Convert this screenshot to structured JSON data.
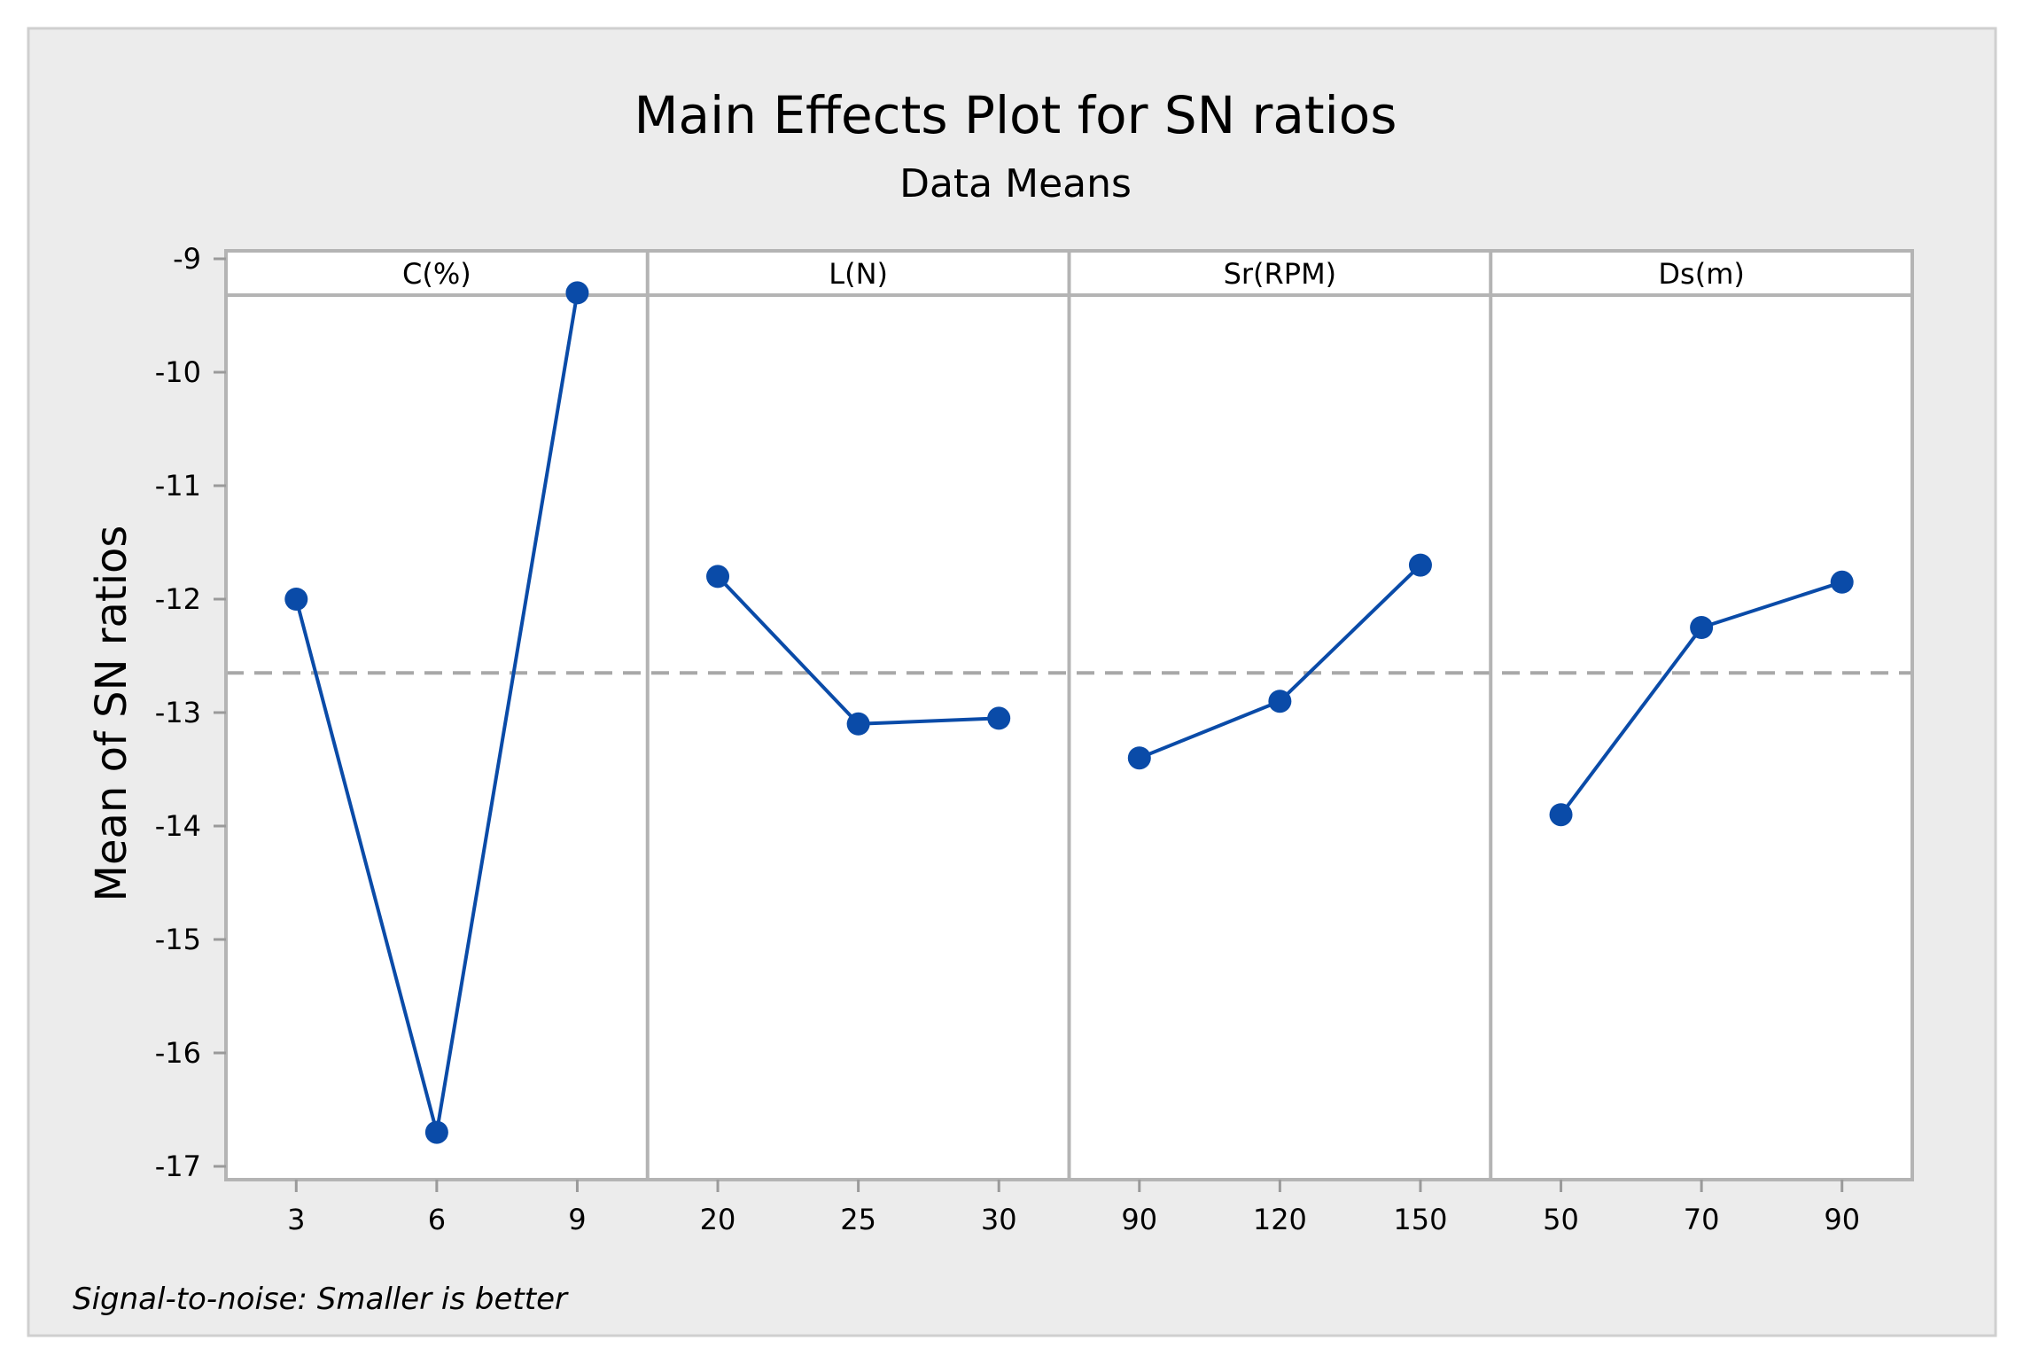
{
  "chart_data": {
    "type": "line",
    "title": "Main Effects Plot for SN ratios",
    "subtitle": "Data Means",
    "ylabel": "Mean of SN ratios",
    "ylim": [
      -17,
      -9
    ],
    "yticks": [
      -9,
      -10,
      -11,
      -12,
      -13,
      -14,
      -15,
      -16,
      -17
    ],
    "reference_line": -12.65,
    "footnote": "Signal-to-noise: Smaller is better",
    "series_color": "#0a4ba8",
    "panels": [
      {
        "label": "C(%)",
        "categories": [
          "3",
          "6",
          "9"
        ],
        "values": [
          -12.0,
          -16.7,
          -9.3
        ]
      },
      {
        "label": "L(N)",
        "categories": [
          "20",
          "25",
          "30"
        ],
        "values": [
          -11.8,
          -13.1,
          -13.05
        ]
      },
      {
        "label": "Sr(RPM)",
        "categories": [
          "90",
          "120",
          "150"
        ],
        "values": [
          -13.4,
          -12.9,
          -11.7
        ]
      },
      {
        "label": "Ds(m)",
        "categories": [
          "50",
          "70",
          "90"
        ],
        "values": [
          -13.9,
          -12.25,
          -11.85
        ]
      }
    ]
  }
}
